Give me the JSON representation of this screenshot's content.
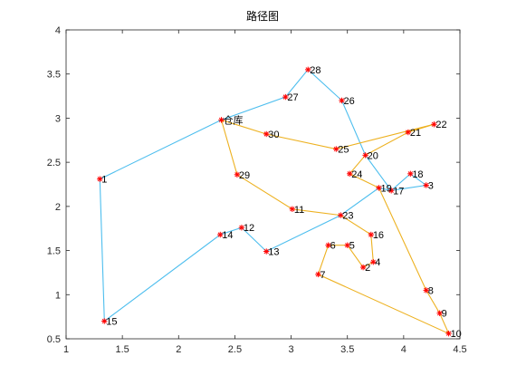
{
  "chart_data": {
    "type": "line",
    "title": "路径图",
    "xlim": [
      1,
      4.5
    ],
    "ylim": [
      0.5,
      4
    ],
    "xticks": [
      "1",
      "1.5",
      "2",
      "2.5",
      "3",
      "3.5",
      "4",
      "4.5"
    ],
    "yticks": [
      "0.5",
      "1",
      "1.5",
      "2",
      "2.5",
      "3",
      "3.5",
      "4"
    ],
    "grid": false,
    "box": true,
    "colors": {
      "route_blue": "#4DBEEE",
      "route_orange": "#EDB120",
      "marker": "#FF0000",
      "axis": "#262626"
    },
    "points": [
      {
        "id": "1",
        "label": "1",
        "x": 1.3,
        "y": 2.31
      },
      {
        "id": "depot",
        "label": "仓库",
        "x": 2.38,
        "y": 2.98
      },
      {
        "id": "4",
        "label": "4",
        "x": 3.73,
        "y": 1.37
      },
      {
        "id": "5",
        "label": "5",
        "x": 3.5,
        "y": 1.56
      },
      {
        "id": "6",
        "label": "6",
        "x": 3.33,
        "y": 1.56
      },
      {
        "id": "7",
        "label": "7",
        "x": 3.24,
        "y": 1.23
      },
      {
        "id": "8",
        "label": "8",
        "x": 4.2,
        "y": 1.05
      },
      {
        "id": "9",
        "label": "9",
        "x": 4.32,
        "y": 0.79
      },
      {
        "id": "10",
        "label": "10",
        "x": 4.4,
        "y": 0.56
      },
      {
        "id": "11",
        "label": "11",
        "x": 3.01,
        "y": 1.97
      },
      {
        "id": "12",
        "label": "12",
        "x": 2.56,
        "y": 1.76
      },
      {
        "id": "13",
        "label": "13",
        "x": 2.78,
        "y": 1.49
      },
      {
        "id": "14",
        "label": "14",
        "x": 2.37,
        "y": 1.68
      },
      {
        "id": "15",
        "label": "15",
        "x": 1.34,
        "y": 0.7
      },
      {
        "id": "16",
        "label": "16",
        "x": 3.71,
        "y": 1.68
      },
      {
        "id": "17",
        "label": "17",
        "x": 3.89,
        "y": 2.18
      },
      {
        "id": "18",
        "label": "18",
        "x": 4.06,
        "y": 2.37
      },
      {
        "id": "19",
        "label": "19",
        "x": 3.78,
        "y": 2.21
      },
      {
        "id": "2",
        "label": "2",
        "x": 3.64,
        "y": 1.31
      },
      {
        "id": "20",
        "label": "20",
        "x": 3.66,
        "y": 2.58
      },
      {
        "id": "21",
        "label": "21",
        "x": 4.04,
        "y": 2.84
      },
      {
        "id": "22",
        "label": "22",
        "x": 4.27,
        "y": 2.93
      },
      {
        "id": "23",
        "label": "23",
        "x": 3.44,
        "y": 1.9
      },
      {
        "id": "24",
        "label": "24",
        "x": 3.52,
        "y": 2.37
      },
      {
        "id": "25",
        "label": "25",
        "x": 3.4,
        "y": 2.65
      },
      {
        "id": "26",
        "label": "26",
        "x": 3.45,
        "y": 3.2
      },
      {
        "id": "27",
        "label": "27",
        "x": 2.95,
        "y": 3.24
      },
      {
        "id": "28",
        "label": "28",
        "x": 3.15,
        "y": 3.55
      },
      {
        "id": "29",
        "label": "29",
        "x": 2.52,
        "y": 2.36
      },
      {
        "id": "30",
        "label": "30",
        "x": 2.78,
        "y": 2.82
      },
      {
        "id": "3",
        "label": "3",
        "x": 4.2,
        "y": 2.24
      }
    ],
    "routes": [
      {
        "color": "#4DBEEE",
        "path": [
          "depot",
          "27",
          "28",
          "26",
          "20",
          "17",
          "18",
          "3",
          "17",
          "19",
          "23",
          "13",
          "12",
          "14",
          "15",
          "1",
          "depot"
        ]
      },
      {
        "color": "#EDB120",
        "path": [
          "depot",
          "29",
          "11",
          "23",
          "16",
          "4",
          "2",
          "5",
          "6",
          "7",
          "10",
          "9",
          "8",
          "19",
          "24",
          "20",
          "21",
          "22",
          "25",
          "30",
          "depot"
        ]
      }
    ]
  }
}
